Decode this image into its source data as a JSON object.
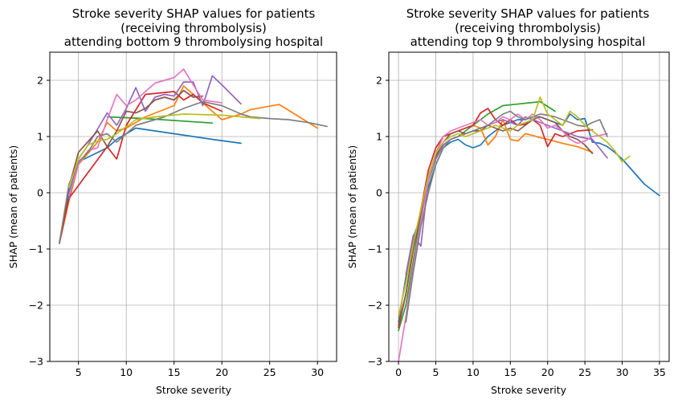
{
  "colors": [
    "#1f77b4",
    "#ff7f0e",
    "#2ca02c",
    "#d62728",
    "#9467bd",
    "#8c564b",
    "#e377c2",
    "#7f7f7f",
    "#bcbd22",
    "#17becf"
  ],
  "chart_data": [
    {
      "type": "line",
      "title": [
        "Stroke severity SHAP values for patients",
        "(receiving thrombolysis)",
        "attending bottom 9 thrombolysing hospital"
      ],
      "xlabel": "Stroke severity",
      "ylabel": "SHAP (mean of patients)",
      "xlim": [
        2,
        32
      ],
      "ylim": [
        -3,
        2.5
      ],
      "xticks": [
        5,
        10,
        15,
        20,
        25,
        30
      ],
      "yticks": [
        -3,
        -2,
        -1,
        0,
        1,
        2
      ],
      "grid": true,
      "series": [
        {
          "x": [
            3,
            4,
            5,
            8,
            9,
            11,
            15,
            19,
            22
          ],
          "y": [
            -0.9,
            0.0,
            0.55,
            0.8,
            0.95,
            1.15,
            1.05,
            0.95,
            0.88
          ]
        },
        {
          "x": [
            3,
            4,
            5,
            7,
            8,
            9,
            10,
            12,
            15,
            16,
            18,
            20,
            22,
            23,
            26,
            30
          ],
          "y": [
            -0.9,
            -0.15,
            0.5,
            0.9,
            1.25,
            1.1,
            1.15,
            1.35,
            1.55,
            1.9,
            1.6,
            1.3,
            1.4,
            1.48,
            1.57,
            1.15
          ]
        },
        {
          "x": [
            8,
            12,
            19
          ],
          "y": [
            1.35,
            1.32,
            1.24
          ]
        },
        {
          "x": [
            3,
            4,
            8,
            9,
            10,
            12,
            15,
            16,
            17,
            18,
            20
          ],
          "y": [
            -0.9,
            -0.1,
            0.82,
            0.6,
            1.2,
            1.75,
            1.8,
            1.65,
            1.75,
            1.6,
            1.45
          ]
        },
        {
          "x": [
            4,
            5,
            6,
            8,
            9,
            10,
            11,
            12,
            13,
            14,
            15,
            16,
            17,
            18,
            19,
            20,
            22
          ],
          "y": [
            -0.1,
            0.6,
            0.85,
            1.42,
            1.2,
            1.5,
            1.87,
            1.45,
            1.7,
            1.75,
            1.72,
            1.97,
            1.97,
            1.55,
            2.08,
            1.92,
            1.58
          ]
        },
        {
          "x": [
            3,
            4,
            5,
            7,
            8,
            9,
            10,
            11,
            12,
            13,
            14,
            15,
            16,
            17,
            18
          ],
          "y": [
            -0.9,
            0.1,
            0.72,
            1.1,
            0.82,
            1.1,
            1.45,
            1.42,
            1.5,
            1.65,
            1.7,
            1.65,
            1.82,
            1.7,
            1.72
          ]
        },
        {
          "x": [
            4,
            5,
            6,
            7,
            8,
            9,
            10,
            11,
            12,
            13,
            15,
            16,
            17,
            18,
            20
          ],
          "y": [
            -0.05,
            0.5,
            0.75,
            0.8,
            1.3,
            1.75,
            1.55,
            1.65,
            1.8,
            1.95,
            2.05,
            2.2,
            1.92,
            1.65,
            1.6
          ]
        },
        {
          "x": [
            3,
            4,
            5,
            6,
            7,
            8,
            9,
            10,
            11,
            14,
            16,
            18,
            20,
            22,
            23,
            25,
            27,
            29,
            31
          ],
          "y": [
            -0.9,
            0.15,
            0.55,
            0.72,
            1.0,
            1.05,
            0.9,
            1.05,
            1.2,
            1.35,
            1.5,
            1.62,
            1.55,
            1.4,
            1.35,
            1.32,
            1.3,
            1.25,
            1.18
          ]
        },
        {
          "x": [
            4,
            5,
            6,
            7,
            8,
            9,
            11,
            13,
            16,
            20,
            24
          ],
          "y": [
            0.1,
            0.6,
            0.85,
            0.92,
            0.95,
            1.05,
            1.3,
            1.35,
            1.4,
            1.38,
            1.32
          ]
        }
      ]
    },
    {
      "type": "line",
      "title": [
        "Stroke severity SHAP values for patients",
        "(receiving thrombolysis)",
        "attending top 9 thrombolysing hospital"
      ],
      "xlabel": "Stroke severity",
      "ylabel": "SHAP (mean of patients)",
      "xlim": [
        -1.3,
        36.3
      ],
      "ylim": [
        -3,
        2.5
      ],
      "xticks": [
        0,
        5,
        10,
        15,
        20,
        25,
        30,
        35
      ],
      "yticks": [
        -3,
        -2,
        -1,
        0,
        1,
        2
      ],
      "grid": true,
      "series": [
        {
          "x": [
            0,
            1,
            2,
            3,
            4,
            5,
            6,
            7,
            8,
            9,
            10,
            11,
            12,
            13,
            14,
            15,
            16,
            17,
            18,
            19,
            20,
            21,
            22,
            23,
            24,
            25,
            26,
            27,
            28,
            29,
            30,
            31,
            33,
            35
          ],
          "y": [
            -2.3,
            -1.5,
            -0.8,
            -0.4,
            0.1,
            0.5,
            0.8,
            0.9,
            0.95,
            0.85,
            0.8,
            0.85,
            1.0,
            1.1,
            1.2,
            1.25,
            1.3,
            1.3,
            1.35,
            1.35,
            1.3,
            1.25,
            1.2,
            1.4,
            1.3,
            1.32,
            0.9,
            0.88,
            0.82,
            0.72,
            0.6,
            0.45,
            0.15,
            -0.05
          ]
        },
        {
          "x": [
            0,
            1,
            2,
            3,
            4,
            5,
            6,
            7,
            8,
            9,
            10,
            11,
            12,
            13,
            14,
            15,
            16,
            17,
            18,
            19,
            20,
            22,
            24,
            26
          ],
          "y": [
            -2.2,
            -1.6,
            -0.9,
            -0.3,
            0.3,
            0.7,
            1.0,
            1.05,
            1.1,
            1.15,
            1.2,
            1.15,
            0.85,
            1.0,
            1.3,
            0.95,
            0.92,
            1.05,
            1.02,
            0.98,
            0.95,
            0.88,
            0.82,
            0.72
          ]
        },
        {
          "x": [
            0,
            1,
            2,
            3,
            4,
            5,
            6,
            7,
            8,
            9,
            10,
            11,
            12,
            14,
            19,
            21
          ],
          "y": [
            -2.45,
            -2.0,
            -1.2,
            -0.4,
            0.2,
            0.6,
            0.85,
            0.95,
            1.0,
            1.1,
            1.2,
            1.3,
            1.4,
            1.55,
            1.62,
            1.45
          ]
        },
        {
          "x": [
            0,
            1,
            2,
            3,
            4,
            5,
            6,
            7,
            8,
            9,
            10,
            11,
            12,
            13,
            14,
            15,
            16,
            17,
            18,
            19,
            20,
            21,
            22,
            24,
            26
          ],
          "y": [
            -2.4,
            -1.8,
            -1.0,
            -0.3,
            0.4,
            0.8,
            1.0,
            1.05,
            1.1,
            1.15,
            1.2,
            1.42,
            1.5,
            1.3,
            1.2,
            1.3,
            1.2,
            1.22,
            1.3,
            1.2,
            0.82,
            1.05,
            1.0,
            1.1,
            1.12
          ]
        },
        {
          "x": [
            1,
            2,
            3,
            4,
            5,
            6,
            7,
            8,
            9,
            10,
            11,
            12,
            13,
            14,
            15,
            16,
            17,
            18,
            19,
            20,
            21,
            22,
            24,
            26,
            28
          ],
          "y": [
            -1.45,
            -0.75,
            -0.95,
            0.25,
            0.6,
            0.85,
            0.95,
            1.0,
            1.05,
            1.1,
            1.15,
            1.2,
            1.25,
            1.3,
            1.25,
            1.2,
            1.35,
            1.3,
            1.25,
            1.2,
            1.15,
            1.1,
            1.0,
            0.95,
            0.62
          ]
        },
        {
          "x": [
            0,
            1,
            2,
            3,
            4,
            5,
            6,
            7,
            8,
            9,
            10,
            11,
            12,
            13,
            14,
            15,
            16,
            17,
            18,
            19,
            20,
            21,
            22,
            23,
            24,
            25,
            26
          ],
          "y": [
            -2.35,
            -1.8,
            -1.0,
            -0.4,
            0.3,
            0.65,
            0.9,
            1.05,
            1.1,
            1.05,
            1.1,
            1.1,
            1.2,
            1.15,
            1.1,
            1.15,
            1.1,
            1.2,
            1.3,
            1.35,
            1.3,
            1.25,
            1.1,
            1.0,
            0.95,
            0.85,
            0.7
          ]
        },
        {
          "x": [
            0,
            1,
            2,
            3,
            4,
            5,
            6,
            7,
            8,
            9,
            10,
            11,
            12,
            13,
            14,
            15,
            16,
            17,
            18,
            19,
            20,
            21,
            22,
            23,
            24,
            25,
            26,
            27,
            28
          ],
          "y": [
            -3.0,
            -2.2,
            -1.3,
            -0.5,
            0.2,
            0.7,
            1.0,
            1.1,
            1.15,
            1.2,
            1.25,
            1.3,
            1.2,
            1.25,
            1.35,
            1.3,
            1.4,
            1.3,
            1.4,
            1.3,
            1.15,
            1.2,
            1.1,
            0.95,
            0.88,
            0.92,
            1.0,
            1.02,
            1.05
          ]
        },
        {
          "x": [
            1,
            2,
            3,
            4,
            5,
            6,
            7,
            8,
            9,
            10,
            11,
            12,
            13,
            14,
            15,
            16,
            17,
            18,
            19,
            20,
            21,
            22,
            23,
            24,
            25,
            26,
            27,
            28
          ],
          "y": [
            -2.3,
            -1.4,
            -0.6,
            0.0,
            0.5,
            0.8,
            0.95,
            1.0,
            1.05,
            1.1,
            1.15,
            1.2,
            1.3,
            1.4,
            1.45,
            1.35,
            1.3,
            1.35,
            1.4,
            1.38,
            1.35,
            1.3,
            1.25,
            1.2,
            1.18,
            1.25,
            1.3,
            1.0
          ]
        },
        {
          "x": [
            0,
            1,
            2,
            3,
            4,
            5,
            6,
            7,
            8,
            9,
            10,
            11,
            12,
            13,
            14,
            15,
            16,
            17,
            18,
            19,
            20,
            21,
            22,
            23,
            24,
            25,
            26,
            27,
            28,
            29,
            30,
            31
          ],
          "y": [
            -2.2,
            -1.6,
            -0.9,
            -0.3,
            0.3,
            0.7,
            0.9,
            1.0,
            1.05,
            1.0,
            1.05,
            1.1,
            1.15,
            1.2,
            1.15,
            1.1,
            1.2,
            1.25,
            1.3,
            1.7,
            1.4,
            1.3,
            1.2,
            1.45,
            1.35,
            1.2,
            1.1,
            1.0,
            0.9,
            0.75,
            0.55,
            0.65
          ]
        }
      ]
    }
  ]
}
